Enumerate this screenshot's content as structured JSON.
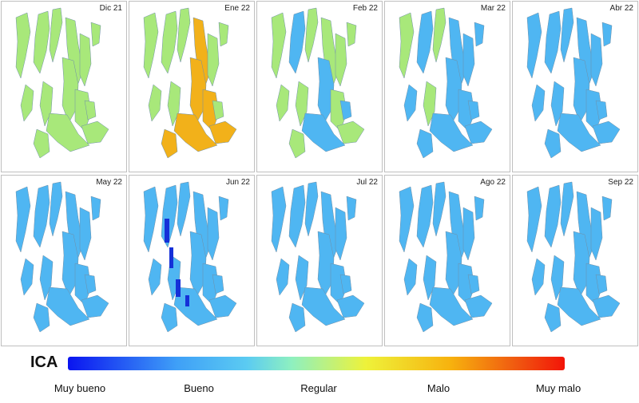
{
  "panels": [
    {
      "label": "Dic 21",
      "scheme": "green"
    },
    {
      "label": "Ene 22",
      "scheme": "green-orange"
    },
    {
      "label": "Feb 22",
      "scheme": "green-blue"
    },
    {
      "label": "Mar 22",
      "scheme": "blue-green"
    },
    {
      "label": "Abr 22",
      "scheme": "blue"
    },
    {
      "label": "May 22",
      "scheme": "blue"
    },
    {
      "label": "Jun 22",
      "scheme": "blue-dark"
    },
    {
      "label": "Jul 22",
      "scheme": "blue"
    },
    {
      "label": "Ago 22",
      "scheme": "blue"
    },
    {
      "label": "Sep 22",
      "scheme": "blue"
    }
  ],
  "legend": {
    "title": "ICA",
    "labels": [
      "Muy bueno",
      "Bueno",
      "Regular",
      "Malo",
      "Muy malo"
    ]
  },
  "colors": {
    "blue": "#4fb6f2",
    "green": "#a8e87a",
    "orange": "#f2b11a",
    "dark_blue": "#1530d8",
    "outline": "#6f8fa8"
  }
}
